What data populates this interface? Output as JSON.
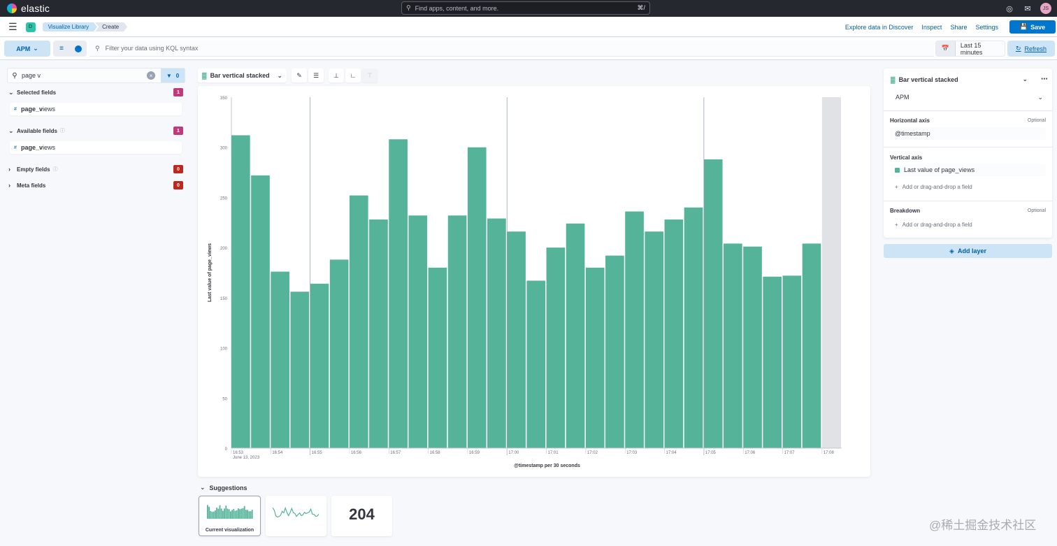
{
  "topbar": {
    "logo_text": "elastic",
    "search_placeholder": "Find apps, content, and more.",
    "search_shortcut": "⌘/",
    "icons": [
      "help-icon",
      "notifications-icon"
    ],
    "user_initials": "JS"
  },
  "header": {
    "space_initial": "D",
    "breadcrumbs": [
      "Visualize Library",
      "Create"
    ],
    "actions": [
      "Explore data in Discover",
      "Inspect",
      "Share",
      "Settings"
    ],
    "save_label": "Save"
  },
  "querybar": {
    "data_view": "APM",
    "kql_placeholder": "Filter your data using KQL syntax",
    "time_range": "Last 15 minutes",
    "refresh_label": "Refresh"
  },
  "sidebar": {
    "search_value": "page v",
    "filter_count": "0",
    "groups": [
      {
        "label": "Selected fields",
        "count": "1",
        "fields": [
          {
            "type": "#",
            "match": "page_v",
            "rest": "iews"
          }
        ]
      },
      {
        "label": "Available fields",
        "count": "1",
        "fields": [
          {
            "type": "#",
            "match": "page_v",
            "rest": "iews"
          }
        ]
      },
      {
        "label": "Empty fields",
        "count": "0",
        "fields": []
      },
      {
        "label": "Meta fields",
        "count": "0",
        "fields": []
      }
    ]
  },
  "workspace": {
    "vis_type": "Bar vertical stacked",
    "tool_icons": [
      "brush-icon",
      "legend-icon",
      "left-axis-icon",
      "bottom-axis-icon",
      "right-axis-icon"
    ]
  },
  "chart_data": {
    "type": "bar",
    "ylabel": "Last value of page_views",
    "xlabel": "@timestamp per 30 seconds",
    "ylim": [
      0,
      350
    ],
    "yticks": [
      0,
      50,
      100,
      150,
      200,
      250,
      300,
      350
    ],
    "grid": false,
    "series": [
      {
        "values": [
          312,
          272,
          176,
          156,
          164,
          188,
          252,
          228,
          308,
          232,
          180,
          232,
          300,
          229,
          216,
          167,
          200,
          224,
          180,
          192,
          236,
          216,
          228,
          240,
          288,
          204,
          201,
          171,
          172,
          204
        ],
        "color": "#54b399"
      }
    ],
    "xtick_labels": [
      "16:53",
      "16:54",
      "16:55",
      "16:56",
      "16:57",
      "16:58",
      "16:59",
      "17:00",
      "17:01",
      "17:02",
      "17:03",
      "17:04",
      "17:05",
      "17:06",
      "17:07",
      "17:08"
    ],
    "date_label": "June 13, 2023"
  },
  "suggestions": {
    "title": "Suggestions",
    "current_label": "Current visualization",
    "metric_value": "204"
  },
  "config": {
    "vis_type": "Bar vertical stacked",
    "layer_data_view": "APM",
    "horizontal_axis_label": "Horizontal axis",
    "optional": "Optional",
    "horizontal_field": "@timestamp",
    "vertical_axis_label": "Vertical axis",
    "vertical_field": "Last value of page_views",
    "add_field": "Add or drag-and-drop a field",
    "breakdown_label": "Breakdown",
    "add_layer": "Add layer"
  },
  "watermark": "@稀土掘金技术社区"
}
